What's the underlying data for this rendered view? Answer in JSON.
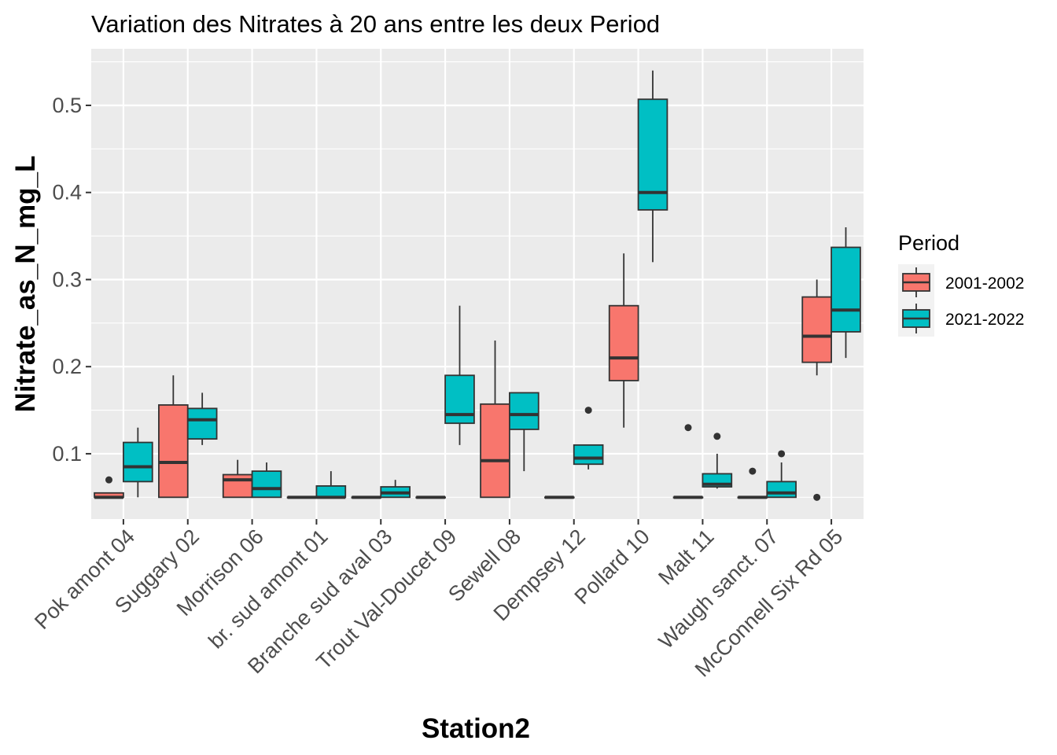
{
  "chart_data": {
    "type": "box",
    "title": "Variation  des Nitrates à 20 ans entre les deux Period",
    "xlabel": "Station2",
    "ylabel": "Nitrate_as_N_mg_L",
    "ylim": [
      0.025,
      0.565
    ],
    "yticks": [
      0.1,
      0.2,
      0.3,
      0.4,
      0.5
    ],
    "ytick_labels": [
      "0.1",
      "0.2",
      "0.3",
      "0.4",
      "0.5"
    ],
    "grid": true,
    "legend": {
      "title": "Period",
      "position": "right"
    },
    "categories": [
      "Pok amont 04",
      "Suggary 02",
      "Morrison 06",
      "br. sud amont 01",
      "Branche sud aval 03",
      "Trout Val-Doucet 09",
      "Sewell 08",
      "Dempsey 12",
      "Pollard 10",
      "Malt 11",
      "Waugh sanct. 07",
      "McConnell Six Rd 05"
    ],
    "series": [
      {
        "name": "2001-2002",
        "color": "#F8766D",
        "boxes": [
          {
            "min": 0.05,
            "q1": 0.05,
            "median": 0.05,
            "q3": 0.055,
            "max": 0.055,
            "outliers": [
              0.07
            ]
          },
          {
            "min": 0.05,
            "q1": 0.05,
            "median": 0.09,
            "q3": 0.156,
            "max": 0.19,
            "outliers": []
          },
          {
            "min": 0.05,
            "q1": 0.05,
            "median": 0.07,
            "q3": 0.076,
            "max": 0.093,
            "outliers": []
          },
          {
            "min": 0.05,
            "q1": 0.05,
            "median": 0.05,
            "q3": 0.05,
            "max": 0.05,
            "outliers": []
          },
          {
            "min": 0.05,
            "q1": 0.05,
            "median": 0.05,
            "q3": 0.05,
            "max": 0.05,
            "outliers": []
          },
          {
            "min": 0.05,
            "q1": 0.05,
            "median": 0.05,
            "q3": 0.05,
            "max": 0.05,
            "outliers": []
          },
          {
            "min": 0.05,
            "q1": 0.05,
            "median": 0.092,
            "q3": 0.157,
            "max": 0.23,
            "outliers": []
          },
          {
            "min": 0.05,
            "q1": 0.05,
            "median": 0.05,
            "q3": 0.05,
            "max": 0.05,
            "outliers": []
          },
          {
            "min": 0.13,
            "q1": 0.184,
            "median": 0.21,
            "q3": 0.27,
            "max": 0.33,
            "outliers": []
          },
          {
            "min": 0.05,
            "q1": 0.05,
            "median": 0.05,
            "q3": 0.05,
            "max": 0.05,
            "outliers": [
              0.13
            ]
          },
          {
            "min": 0.05,
            "q1": 0.05,
            "median": 0.05,
            "q3": 0.05,
            "max": 0.05,
            "outliers": [
              0.08
            ]
          },
          {
            "min": 0.19,
            "q1": 0.205,
            "median": 0.235,
            "q3": 0.28,
            "max": 0.3,
            "outliers": [
              0.05
            ]
          }
        ]
      },
      {
        "name": "2021-2022",
        "color": "#00BFC4",
        "boxes": [
          {
            "min": 0.05,
            "q1": 0.068,
            "median": 0.085,
            "q3": 0.113,
            "max": 0.13,
            "outliers": []
          },
          {
            "min": 0.11,
            "q1": 0.117,
            "median": 0.139,
            "q3": 0.152,
            "max": 0.17,
            "outliers": []
          },
          {
            "min": 0.05,
            "q1": 0.05,
            "median": 0.06,
            "q3": 0.08,
            "max": 0.09,
            "outliers": []
          },
          {
            "min": 0.05,
            "q1": 0.05,
            "median": 0.05,
            "q3": 0.063,
            "max": 0.08,
            "outliers": []
          },
          {
            "min": 0.05,
            "q1": 0.05,
            "median": 0.055,
            "q3": 0.062,
            "max": 0.07,
            "outliers": []
          },
          {
            "min": 0.11,
            "q1": 0.135,
            "median": 0.145,
            "q3": 0.19,
            "max": 0.27,
            "outliers": []
          },
          {
            "min": 0.08,
            "q1": 0.128,
            "median": 0.145,
            "q3": 0.17,
            "max": 0.17,
            "outliers": []
          },
          {
            "min": 0.082,
            "q1": 0.088,
            "median": 0.095,
            "q3": 0.11,
            "max": 0.11,
            "outliers": [
              0.15
            ]
          },
          {
            "min": 0.32,
            "q1": 0.38,
            "median": 0.4,
            "q3": 0.507,
            "max": 0.54,
            "outliers": []
          },
          {
            "min": 0.06,
            "q1": 0.062,
            "median": 0.065,
            "q3": 0.077,
            "max": 0.1,
            "outliers": [
              0.12
            ]
          },
          {
            "min": 0.05,
            "q1": 0.05,
            "median": 0.055,
            "q3": 0.068,
            "max": 0.09,
            "outliers": [
              0.1
            ]
          },
          {
            "min": 0.21,
            "q1": 0.24,
            "median": 0.265,
            "q3": 0.337,
            "max": 0.36,
            "outliers": []
          }
        ]
      }
    ]
  }
}
